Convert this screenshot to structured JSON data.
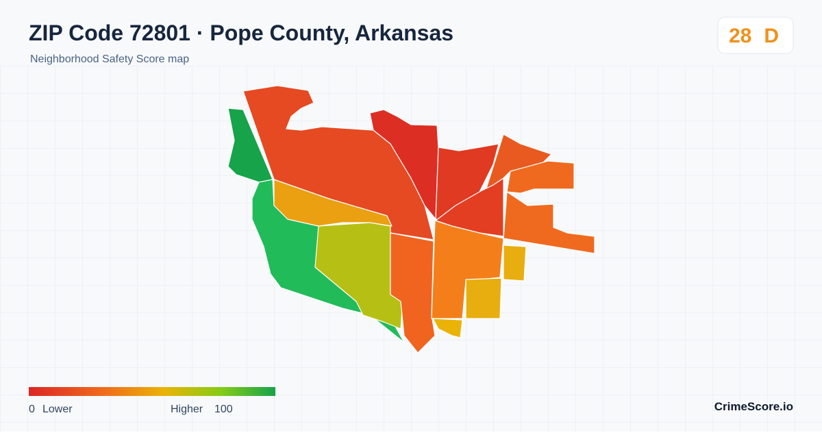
{
  "header": {
    "title": "ZIP Code 72801 · Pope County, Arkansas",
    "subtitle": "Neighborhood Safety Score map"
  },
  "score_badge": {
    "score": "28",
    "grade": "D"
  },
  "legend": {
    "min": "0",
    "min_label": "Lower",
    "max_label": "Higher",
    "max": "100"
  },
  "footer": {
    "brand": "CrimeScore.io"
  }
}
